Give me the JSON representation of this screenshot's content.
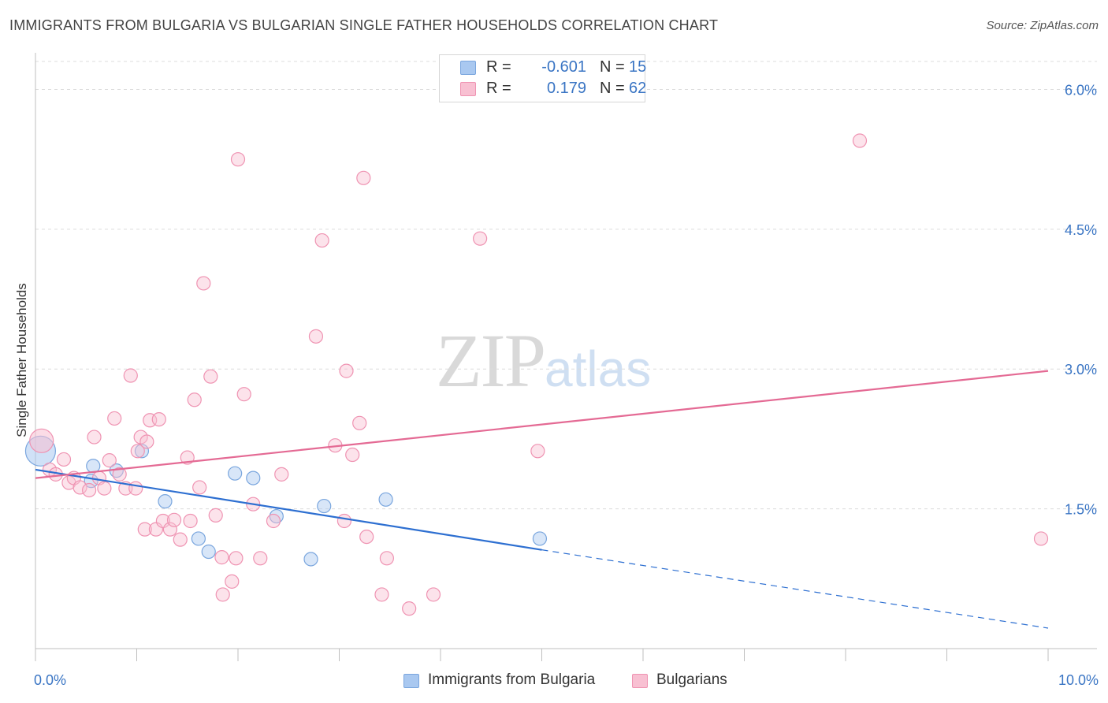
{
  "header": {
    "title": "IMMIGRANTS FROM BULGARIA VS BULGARIAN SINGLE FATHER HOUSEHOLDS CORRELATION CHART",
    "source": "Source: ZipAtlas.com"
  },
  "watermark": {
    "part1": "ZIP",
    "part2": "atlas"
  },
  "legend": {
    "rows": [
      {
        "r_label": "R =",
        "r_value": "-0.601",
        "n_label": "N =",
        "n_value": "15",
        "color": "#a9c8f0",
        "border": "#7aa6de"
      },
      {
        "r_label": "R =",
        "r_value": "0.179",
        "n_label": "N =",
        "n_value": "62",
        "color": "#f8c0d2",
        "border": "#ef93b2"
      }
    ]
  },
  "bottom_legend": [
    {
      "label": "Immigrants from Bulgaria",
      "color": "#a9c8f0",
      "border": "#7aa6de"
    },
    {
      "label": "Bulgarians",
      "color": "#f8c0d2",
      "border": "#ef93b2"
    }
  ],
  "chart_data": {
    "type": "scatter",
    "title": "IMMIGRANTS FROM BULGARIA VS BULGARIAN SINGLE FATHER HOUSEHOLDS CORRELATION CHART",
    "xlabel": "",
    "ylabel": "Single Father Households",
    "xlim": [
      0,
      10
    ],
    "ylim": [
      0,
      6.3
    ],
    "x_tick_labels": [
      "0.0%",
      "10.0%"
    ],
    "y_ticks": [
      1.5,
      3.0,
      4.5,
      6.0
    ],
    "y_tick_labels": [
      "1.5%",
      "3.0%",
      "4.5%",
      "6.0%"
    ],
    "grid": "horizontal dashed",
    "legend_position": "top-center",
    "series": [
      {
        "name": "Immigrants from Bulgaria",
        "color": "#7aa6de",
        "fill": "#a9c8f0",
        "line_color": "#2d6fd1",
        "points": [
          [
            0.05,
            2.12
          ],
          [
            0.55,
            1.8
          ],
          [
            0.57,
            1.96
          ],
          [
            0.8,
            1.91
          ],
          [
            1.05,
            2.12
          ],
          [
            1.28,
            1.58
          ],
          [
            1.61,
            1.18
          ],
          [
            1.71,
            1.04
          ],
          [
            1.97,
            1.88
          ],
          [
            2.15,
            1.83
          ],
          [
            2.38,
            1.42
          ],
          [
            2.72,
            0.96
          ],
          [
            2.85,
            1.53
          ],
          [
            3.46,
            1.6
          ],
          [
            4.98,
            1.18
          ]
        ],
        "trend": {
          "x_start": 0.0,
          "y_start": 1.92,
          "x_solid_end": 5.0,
          "y_solid_end": 1.06,
          "x_end": 10.0,
          "y_end": 0.22
        }
      },
      {
        "name": "Bulgarians",
        "color": "#ef93b2",
        "fill": "#f8c0d2",
        "line_color": "#e46a94",
        "points": [
          [
            0.06,
            2.23
          ],
          [
            0.14,
            1.92
          ],
          [
            0.2,
            1.87
          ],
          [
            0.28,
            2.03
          ],
          [
            0.33,
            1.78
          ],
          [
            0.38,
            1.83
          ],
          [
            0.44,
            1.73
          ],
          [
            0.53,
            1.7
          ],
          [
            0.58,
            2.27
          ],
          [
            0.63,
            1.83
          ],
          [
            0.68,
            1.72
          ],
          [
            0.73,
            2.02
          ],
          [
            0.78,
            2.47
          ],
          [
            0.83,
            1.87
          ],
          [
            0.89,
            1.72
          ],
          [
            0.94,
            2.93
          ],
          [
            0.99,
            1.72
          ],
          [
            1.01,
            2.12
          ],
          [
            1.04,
            2.27
          ],
          [
            1.08,
            1.28
          ],
          [
            1.1,
            2.22
          ],
          [
            1.13,
            2.45
          ],
          [
            1.19,
            1.28
          ],
          [
            1.22,
            2.46
          ],
          [
            1.26,
            1.37
          ],
          [
            1.33,
            1.28
          ],
          [
            1.37,
            1.38
          ],
          [
            1.43,
            1.17
          ],
          [
            1.5,
            2.05
          ],
          [
            1.53,
            1.37
          ],
          [
            1.57,
            2.67
          ],
          [
            1.62,
            1.73
          ],
          [
            1.66,
            3.92
          ],
          [
            1.73,
            2.92
          ],
          [
            1.78,
            1.43
          ],
          [
            1.84,
            0.98
          ],
          [
            1.85,
            0.58
          ],
          [
            1.94,
            0.72
          ],
          [
            1.98,
            0.97
          ],
          [
            2.0,
            5.25
          ],
          [
            2.06,
            2.73
          ],
          [
            2.15,
            1.55
          ],
          [
            2.22,
            0.97
          ],
          [
            2.35,
            1.37
          ],
          [
            2.43,
            1.87
          ],
          [
            2.77,
            3.35
          ],
          [
            2.83,
            4.38
          ],
          [
            2.96,
            2.18
          ],
          [
            3.07,
            2.98
          ],
          [
            3.13,
            2.08
          ],
          [
            3.2,
            2.42
          ],
          [
            3.24,
            5.05
          ],
          [
            3.27,
            1.2
          ],
          [
            3.42,
            0.58
          ],
          [
            3.47,
            0.97
          ],
          [
            3.69,
            0.43
          ],
          [
            3.93,
            0.58
          ],
          [
            4.39,
            4.4
          ],
          [
            4.96,
            2.12
          ],
          [
            8.14,
            5.45
          ],
          [
            9.93,
            1.18
          ],
          [
            3.05,
            1.37
          ]
        ],
        "trend": {
          "x_start": 0.0,
          "y_start": 1.83,
          "x_end": 10.0,
          "y_end": 2.98
        }
      }
    ]
  }
}
